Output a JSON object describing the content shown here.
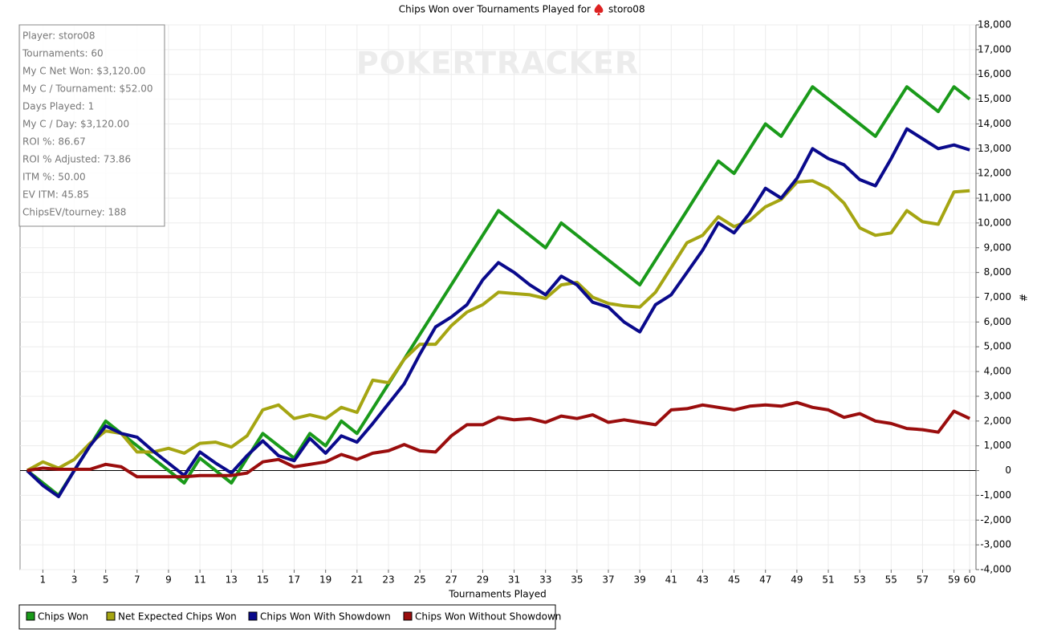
{
  "chart_data": {
    "type": "line",
    "title": "Chips Won over Tournaments Played for",
    "title_player": "storo08",
    "watermark": "POKERTRACKER",
    "x_label": "Tournaments Played",
    "y_label": "#",
    "info_box": [
      "Player: storo08",
      "Tournaments: 60",
      "My C Net Won: $3,120.00",
      "My C / Tournament: $52.00",
      "Days Played: 1",
      "My C / Day: $3,120.00",
      "ROI %: 86.67",
      "ROI % Adjusted: 73.86",
      "ITM %: 50.00",
      "EV ITM: 45.85",
      "ChipsEV/tourney: 188"
    ],
    "x": [
      0,
      1,
      2,
      3,
      4,
      5,
      6,
      7,
      8,
      9,
      10,
      11,
      12,
      13,
      14,
      15,
      16,
      17,
      18,
      19,
      20,
      21,
      22,
      23,
      24,
      25,
      26,
      27,
      28,
      29,
      30,
      31,
      32,
      33,
      34,
      35,
      36,
      37,
      38,
      39,
      40,
      41,
      42,
      43,
      44,
      45,
      46,
      47,
      48,
      49,
      50,
      51,
      52,
      53,
      54,
      55,
      56,
      57,
      58,
      59,
      60
    ],
    "xlim": [
      -0.45,
      60.4
    ],
    "xticks": [
      1,
      3,
      5,
      7,
      9,
      11,
      13,
      15,
      17,
      19,
      21,
      23,
      25,
      27,
      29,
      31,
      33,
      35,
      37,
      39,
      41,
      43,
      45,
      47,
      49,
      51,
      53,
      55,
      57,
      59,
      60
    ],
    "ylim": [
      -4000,
      18000
    ],
    "yticks": [
      {
        "value": -4000,
        "label": "-4,000"
      },
      {
        "value": -3000,
        "label": "-3,000"
      },
      {
        "value": -2000,
        "label": "-2,000"
      },
      {
        "value": -1000,
        "label": "-1,000"
      },
      0,
      {
        "value": 1000,
        "label": "1,000"
      },
      {
        "value": 2000,
        "label": "2,000"
      },
      {
        "value": 3000,
        "label": "3,000"
      },
      {
        "value": 4000,
        "label": "4,000"
      },
      {
        "value": 5000,
        "label": "5,000"
      },
      {
        "value": 6000,
        "label": "6,000"
      },
      {
        "value": 7000,
        "label": "7,000"
      },
      {
        "value": 8000,
        "label": "8,000"
      },
      {
        "value": 9000,
        "label": "9,000"
      },
      {
        "value": 10000,
        "label": "10,000"
      },
      {
        "value": 11000,
        "label": "11,000"
      },
      {
        "value": 12000,
        "label": "12,000"
      },
      {
        "value": 13000,
        "label": "13,000"
      },
      {
        "value": 14000,
        "label": "14,000"
      },
      {
        "value": 15000,
        "label": "15,000"
      },
      {
        "value": 16000,
        "label": "16,000"
      },
      {
        "value": 17000,
        "label": "17,000"
      },
      {
        "value": 18000,
        "label": "18,000"
      }
    ],
    "grid": true,
    "legend": "bottom-left",
    "series": [
      {
        "name": "Chips Won",
        "color": "#1a9a1a",
        "values": [
          0,
          -500,
          -1000,
          0,
          1000,
          2000,
          1500,
          1000,
          500,
          0,
          -500,
          500,
          0,
          -500,
          500,
          1500,
          1000,
          500,
          1500,
          1000,
          2000,
          1500,
          2500,
          3500,
          4500,
          5500,
          6500,
          7500,
          8500,
          9500,
          10500,
          10000,
          9500,
          9000,
          10000,
          9500,
          9000,
          8500,
          8000,
          7500,
          8500,
          9500,
          10500,
          11500,
          12500,
          12000,
          13000,
          14000,
          13500,
          14500,
          15500,
          15000,
          14500,
          14000,
          13500,
          14500,
          15500,
          15000,
          14500,
          15500,
          15000
        ]
      },
      {
        "name": "Net Expected Chips Won",
        "color": "#a5a512",
        "values": [
          0,
          350,
          100,
          450,
          1100,
          1600,
          1500,
          750,
          750,
          900,
          700,
          1100,
          1150,
          950,
          1400,
          2450,
          2650,
          2100,
          2250,
          2100,
          2550,
          2350,
          3650,
          3550,
          4500,
          5100,
          5100,
          5850,
          6400,
          6700,
          7200,
          7150,
          7100,
          6950,
          7500,
          7600,
          7000,
          6750,
          6650,
          6600,
          7200,
          8200,
          9200,
          9500,
          10250,
          9850,
          10100,
          10650,
          10950,
          11650,
          11700,
          11400,
          10800,
          9800,
          9500,
          9600,
          10500,
          10050,
          9950,
          11250,
          11300
        ]
      },
      {
        "name": "Chips Won With Showdown",
        "color": "#0a0a8c",
        "values": [
          0,
          -600,
          -1050,
          0,
          1000,
          1800,
          1500,
          1350,
          800,
          300,
          -200,
          750,
          300,
          -100,
          600,
          1200,
          600,
          400,
          1300,
          700,
          1400,
          1150,
          1900,
          2700,
          3500,
          4700,
          5800,
          6200,
          6700,
          7700,
          8400,
          8000,
          7500,
          7100,
          7850,
          7500,
          6800,
          6600,
          6000,
          5600,
          6700,
          7100,
          8000,
          8900,
          10000,
          9600,
          10400,
          11400,
          11000,
          11800,
          13000,
          12600,
          12350,
          11750,
          11500,
          12600,
          13800,
          13400,
          13000,
          13150,
          12950
        ]
      },
      {
        "name": "Chips Won Without Showdown",
        "color": "#9a0d0d",
        "values": [
          0,
          100,
          50,
          50,
          50,
          250,
          150,
          -250,
          -250,
          -250,
          -250,
          -200,
          -200,
          -200,
          -100,
          350,
          450,
          150,
          250,
          350,
          650,
          450,
          700,
          800,
          1050,
          800,
          750,
          1400,
          1850,
          1850,
          2150,
          2050,
          2100,
          1950,
          2200,
          2100,
          2250,
          1950,
          2050,
          1950,
          1850,
          2450,
          2500,
          2650,
          2550,
          2450,
          2600,
          2650,
          2600,
          2750,
          2550,
          2450,
          2150,
          2300,
          2000,
          1900,
          1700,
          1650,
          1550,
          2400,
          2100
        ]
      }
    ]
  }
}
